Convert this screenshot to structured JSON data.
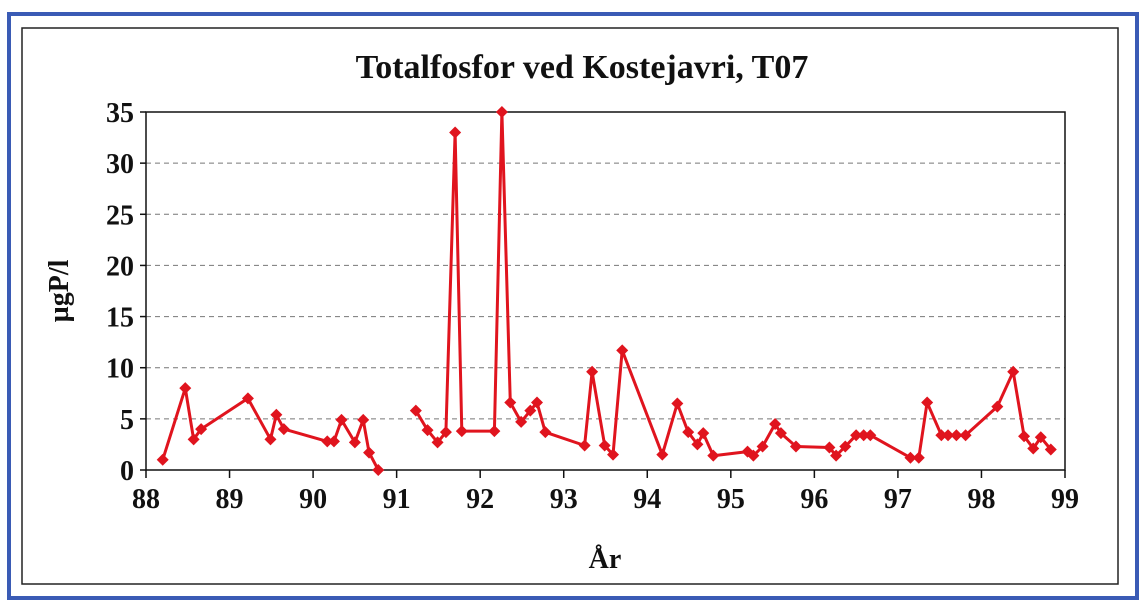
{
  "chart_data": {
    "type": "line",
    "title": "Totalfosfor ved Kostejavri, T07",
    "x_label": "År",
    "y_label": "µgP/l",
    "xlim": [
      88,
      99
    ],
    "xticks": [
      88,
      89,
      90,
      91,
      92,
      93,
      94,
      95,
      96,
      97,
      98,
      99
    ],
    "ylim": [
      0,
      35
    ],
    "yticks": [
      0,
      5,
      10,
      15,
      20,
      25,
      30,
      35
    ],
    "grid": true,
    "x": [
      88.2,
      88.47,
      88.57,
      88.66,
      89.22,
      89.49,
      89.56,
      89.65,
      90.17,
      90.25,
      90.34,
      90.5,
      90.6,
      90.67,
      90.78,
      null,
      91.23,
      91.37,
      91.49,
      91.59,
      91.7,
      91.78,
      92.17,
      92.26,
      92.36,
      92.49,
      92.6,
      92.68,
      92.78,
      93.25,
      93.34,
      93.49,
      93.59,
      93.7,
      94.18,
      94.36,
      94.49,
      94.6,
      94.67,
      94.79,
      95.2,
      95.27,
      95.38,
      95.53,
      95.6,
      95.78,
      96.18,
      96.26,
      96.37,
      96.5,
      96.59,
      96.67,
      97.15,
      97.25,
      97.35,
      97.52,
      97.6,
      97.7,
      97.81,
      98.19,
      98.38,
      98.51,
      98.62,
      98.71,
      98.83
    ],
    "series": [
      {
        "name": "Totalfosfor",
        "color": "#e0141e",
        "values": [
          1,
          8,
          3,
          4,
          7,
          3,
          5.4,
          4,
          2.8,
          2.8,
          4.9,
          2.7,
          4.9,
          1.7,
          0,
          null,
          5.8,
          3.9,
          2.7,
          3.7,
          33,
          3.8,
          3.8,
          35,
          6.6,
          4.7,
          5.8,
          6.6,
          3.7,
          2.4,
          9.6,
          2.4,
          1.5,
          11.7,
          1.5,
          6.5,
          3.7,
          2.5,
          3.6,
          1.4,
          1.8,
          1.4,
          2.3,
          4.5,
          3.6,
          2.3,
          2.2,
          1.4,
          2.3,
          3.4,
          3.4,
          3.4,
          1.2,
          1.2,
          6.6,
          3.4,
          3.4,
          3.4,
          3.4,
          6.2,
          9.6,
          3.3,
          2.1,
          3.2,
          2
        ]
      }
    ]
  }
}
